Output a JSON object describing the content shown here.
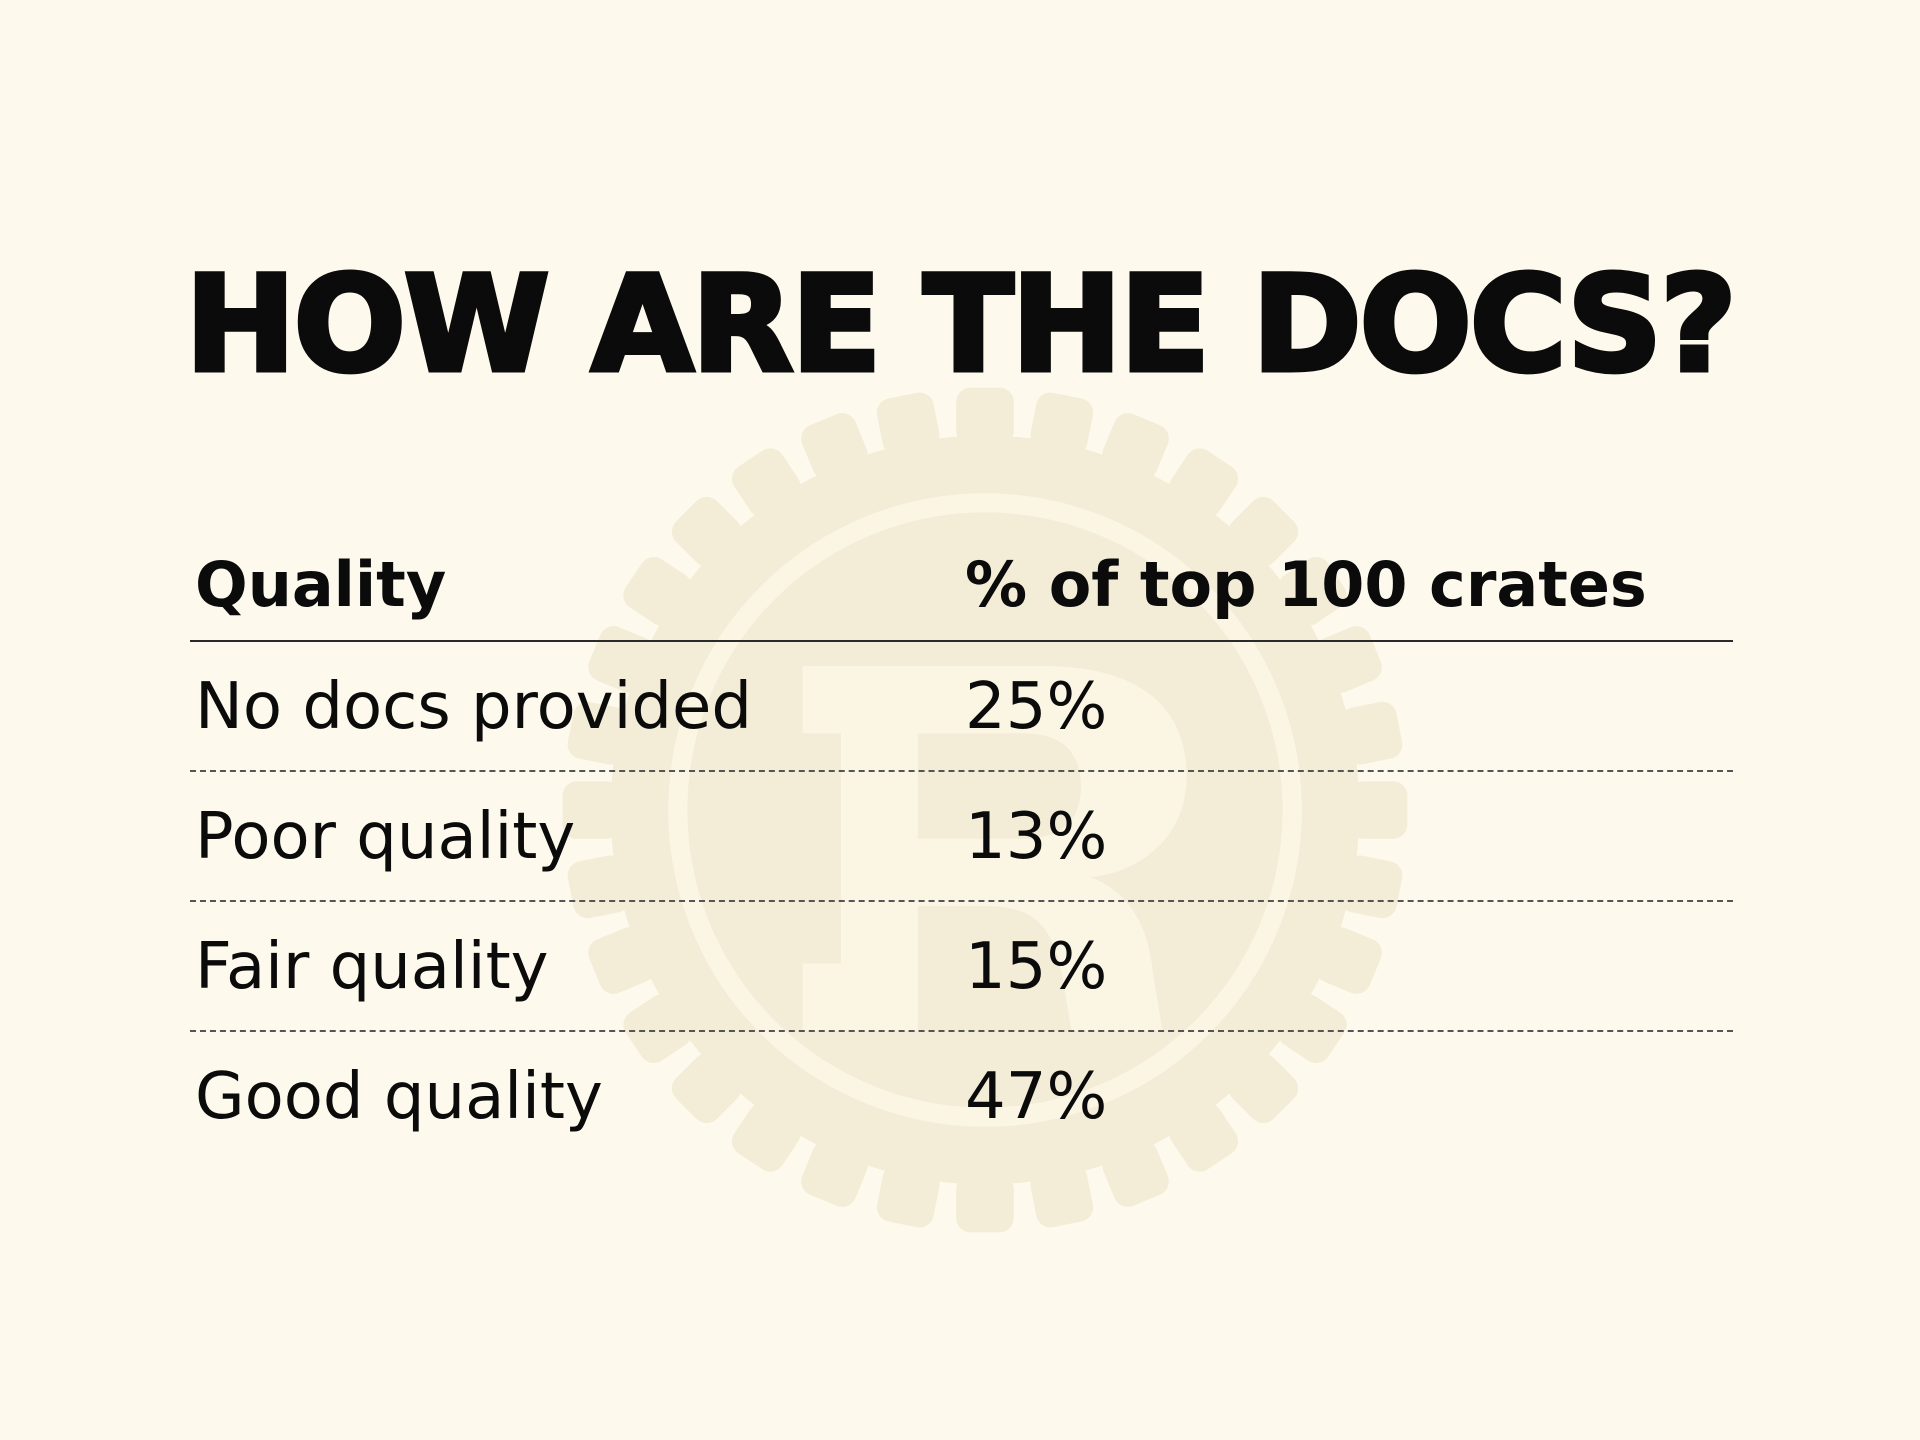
{
  "slide": {
    "title": "HOW ARE THE DOCS?"
  },
  "table": {
    "headers": [
      "Quality",
      "% of top 100 crates"
    ],
    "rows": [
      {
        "quality": "No docs provided",
        "percent": "25%"
      },
      {
        "quality": "Poor quality",
        "percent": "13%"
      },
      {
        "quality": "Fair quality",
        "percent": "15%"
      },
      {
        "quality": "Good quality",
        "percent": "47%"
      }
    ]
  },
  "colors": {
    "background": "#fdf9ec",
    "text": "#0b0b0b",
    "watermark": "#f3ecd7"
  },
  "watermark": {
    "icon": "rust-gear-logo-icon"
  }
}
